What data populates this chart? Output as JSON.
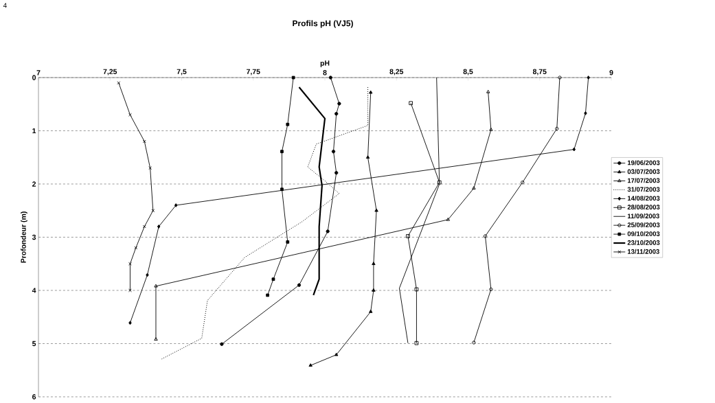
{
  "chart_data": {
    "type": "line",
    "title": "Profils pH (VJ5)",
    "xlabel": "pH",
    "ylabel": "Profondeur (m)",
    "annotations": [
      "4"
    ],
    "xlim": [
      7,
      9
    ],
    "ylim": [
      6,
      0
    ],
    "xticks": [
      7,
      {
        "value": 7.25,
        "label": "7,25"
      },
      {
        "value": 7.5,
        "label": "7,5"
      },
      {
        "value": 7.75,
        "label": "7,75"
      },
      8,
      {
        "value": 8.25,
        "label": "8,25"
      },
      {
        "value": 8.5,
        "label": "8,5"
      },
      {
        "value": 8.75,
        "label": "8,75"
      },
      9
    ],
    "yticks": [
      0,
      1,
      2,
      3,
      4,
      5,
      6
    ],
    "grid": "y",
    "legend": "right",
    "series": [
      {
        "name": "19/06/2003",
        "color": "#000000",
        "marker": "circle",
        "line_style": "solid",
        "x": [
          8.02,
          8.05,
          8.04,
          8.03,
          8.04,
          8.01,
          7.91,
          7.64
        ],
        "values": [
          0,
          0.49,
          0.68,
          1.39,
          1.79,
          2.89,
          3.9,
          5.01
        ]
      },
      {
        "name": "03/07/2003",
        "color": "#000000",
        "marker": "triangle",
        "line_style": "solid",
        "x": [
          8.16,
          8.15,
          8.18,
          8.17,
          8.17,
          8.16,
          8.04,
          7.95
        ],
        "values": [
          0.28,
          1.5,
          2.5,
          3.5,
          4.0,
          4.4,
          5.21,
          5.41
        ]
      },
      {
        "name": "17/07/2003",
        "color": "#000000",
        "marker": "triangle",
        "line_style": "solid",
        "x": [
          8.57,
          8.58,
          8.52,
          8.43,
          7.41,
          7.41
        ],
        "values": [
          0.27,
          0.98,
          2.08,
          2.67,
          3.92,
          4.92
        ]
      },
      {
        "name": "31/07/2003",
        "color": "#000000",
        "marker": "none",
        "line_style": "dotted",
        "x": [
          8.15,
          8.15,
          7.97,
          7.94,
          8.0,
          8.05,
          7.92,
          7.72,
          7.59,
          7.57,
          7.43
        ],
        "values": [
          0.18,
          0.9,
          1.25,
          1.68,
          1.94,
          2.18,
          2.71,
          3.38,
          4.19,
          4.9,
          5.29
        ]
      },
      {
        "name": "14/08/2003",
        "color": "#000000",
        "marker": "diamond",
        "line_style": "solid",
        "x": [
          8.92,
          8.91,
          8.87,
          7.48,
          7.42,
          7.38,
          7.32
        ],
        "values": [
          0,
          0.67,
          1.35,
          2.4,
          2.8,
          3.71,
          4.61
        ]
      },
      {
        "name": "28/08/2003",
        "color": "#000000",
        "marker": "square",
        "line_style": "solid",
        "x": [
          8.3,
          8.4,
          8.29,
          8.32,
          8.32
        ],
        "values": [
          0.48,
          1.97,
          2.98,
          3.98,
          4.99
        ]
      },
      {
        "name": "11/09/2003",
        "color": "#000000",
        "marker": "none",
        "line_style": "solid",
        "x": [
          8.39,
          8.4,
          8.26,
          8.29
        ],
        "values": [
          0,
          2.0,
          3.96,
          4.99
        ]
      },
      {
        "name": "25/09/2003",
        "color": "#000000",
        "marker": "circle",
        "line_style": "solid",
        "x": [
          8.82,
          8.81,
          8.69,
          8.56,
          8.58,
          8.52
        ],
        "values": [
          0,
          0.96,
          1.97,
          2.98,
          3.98,
          4.98
        ]
      },
      {
        "name": "09/10/2003",
        "color": "#000000",
        "marker": "square",
        "line_style": "solid",
        "x": [
          7.89,
          7.87,
          7.85,
          7.85,
          7.87,
          7.82,
          7.8
        ],
        "values": [
          0,
          0.88,
          1.39,
          2.1,
          3.09,
          3.79,
          4.09
        ]
      },
      {
        "name": "23/10/2003",
        "color": "#000000",
        "marker": "none",
        "line_style": "solid",
        "x": [
          7.91,
          8.0,
          7.98,
          7.99,
          7.98,
          7.98,
          7.96
        ],
        "values": [
          0.18,
          0.77,
          1.68,
          2.03,
          2.8,
          3.79,
          4.09
        ]
      },
      {
        "name": "13/11/2003",
        "color": "#000000",
        "marker": "cross",
        "line_style": "solid",
        "x": [
          7.28,
          7.32,
          7.37,
          7.39,
          7.4,
          7.37,
          7.34,
          7.32,
          7.32
        ],
        "values": [
          0.1,
          0.7,
          1.2,
          1.7,
          2.5,
          2.8,
          3.2,
          3.5,
          4.0
        ]
      }
    ]
  }
}
